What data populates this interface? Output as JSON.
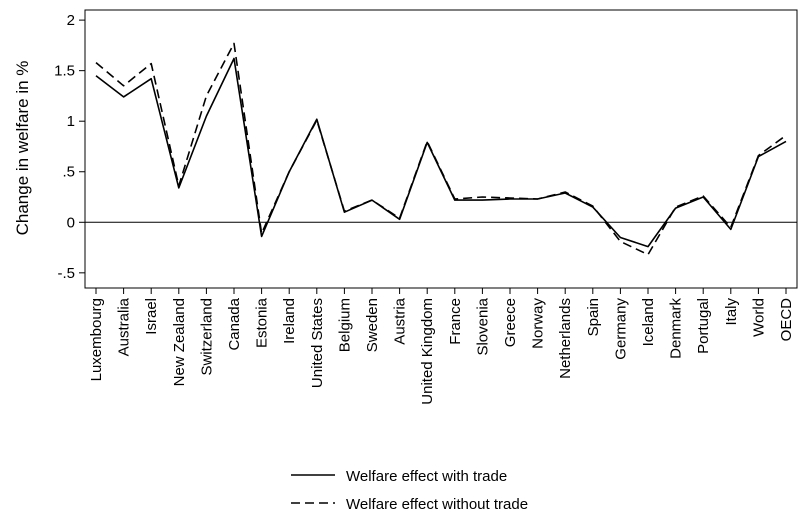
{
  "chart_data": {
    "type": "line",
    "title": "",
    "xlabel": "",
    "ylabel": "Change in welfare in %",
    "ylim": [
      -0.65,
      2.1
    ],
    "yticks": [
      -0.5,
      0,
      0.5,
      1,
      1.5,
      2
    ],
    "ytick_labels": [
      "-.5",
      "0",
      ".5",
      "1",
      "1.5",
      "2"
    ],
    "zero_line": true,
    "grid": false,
    "legend_position": "bottom",
    "categories": [
      "Luxembourg",
      "Australia",
      "Israel",
      "New Zealand",
      "Switzerland",
      "Canada",
      "Estonia",
      "Ireland",
      "United States",
      "Belgium",
      "Sweden",
      "Austria",
      "United Kingdom",
      "France",
      "Slovenia",
      "Greece",
      "Norway",
      "Netherlands",
      "Spain",
      "Germany",
      "Iceland",
      "Denmark",
      "Portugal",
      "Italy",
      "World",
      "OECD"
    ],
    "series": [
      {
        "name": "Welfare effect with trade",
        "style": "solid",
        "color": "#000000",
        "values": [
          1.45,
          1.24,
          1.42,
          0.34,
          1.05,
          1.62,
          -0.14,
          0.5,
          1.02,
          0.1,
          0.22,
          0.03,
          0.79,
          0.22,
          0.22,
          0.23,
          0.23,
          0.29,
          0.15,
          -0.15,
          -0.24,
          0.14,
          0.25,
          -0.07,
          0.65,
          0.8
        ]
      },
      {
        "name": "Welfare effect without trade",
        "style": "dashed",
        "color": "#000000",
        "values": [
          1.58,
          1.35,
          1.57,
          0.36,
          1.25,
          1.77,
          -0.11,
          0.5,
          1.01,
          0.11,
          0.22,
          0.04,
          0.8,
          0.23,
          0.25,
          0.24,
          0.23,
          0.3,
          0.16,
          -0.19,
          -0.32,
          0.15,
          0.26,
          -0.05,
          0.66,
          0.86
        ]
      }
    ]
  }
}
